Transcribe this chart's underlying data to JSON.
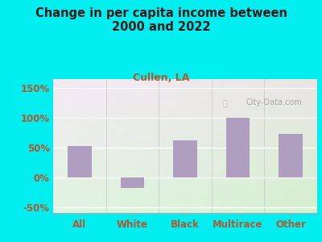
{
  "title": "Change in per capita income between\n2000 and 2022",
  "subtitle": "Cullen, LA",
  "categories": [
    "All",
    "White",
    "Black",
    "Multirace",
    "Other"
  ],
  "values": [
    52,
    -18,
    62,
    100,
    73
  ],
  "bar_color": "#b09ec0",
  "background_outer": "#00eef0",
  "title_color": "#1a1a1a",
  "subtitle_color": "#b05a30",
  "tick_label_color": "#b05a30",
  "ylim": [
    -60,
    165
  ],
  "yticks": [
    -50,
    0,
    50,
    100,
    150
  ],
  "ytick_labels": [
    "-50%",
    "0%",
    "50%",
    "100%",
    "150%"
  ],
  "watermark": "City-Data.com",
  "figsize": [
    4.0,
    3.0
  ],
  "dpi": 100
}
